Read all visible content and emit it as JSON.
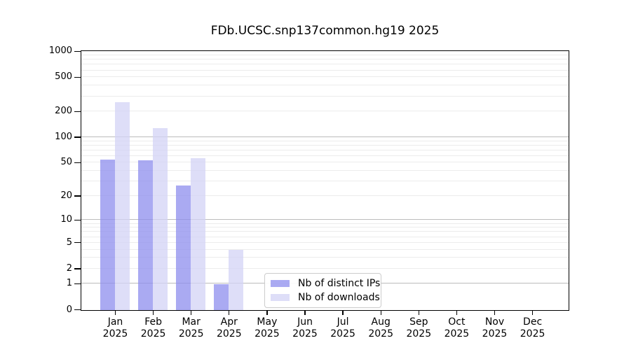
{
  "chart_data": {
    "type": "bar",
    "title": "FDb.UCSC.snp137common.hg19 2025",
    "categories": [
      "Jan",
      "Feb",
      "Mar",
      "Apr",
      "May",
      "Jun",
      "Jul",
      "Aug",
      "Sep",
      "Oct",
      "Nov",
      "Dec"
    ],
    "category_year": "2025",
    "series": [
      {
        "key": "distinct-ips",
        "name": "Nb of distinct IPs",
        "fill": "rgba(142,142,238,0.75)",
        "values": [
          55,
          54,
          27,
          1,
          0,
          0,
          0,
          0,
          0,
          0,
          0,
          0
        ]
      },
      {
        "key": "downloads",
        "name": "Nb of downloads",
        "fill": "rgba(211,211,246,0.75)",
        "values": [
          260,
          130,
          57,
          4,
          0,
          0,
          0,
          0,
          0,
          0,
          0,
          0
        ]
      }
    ],
    "y_axis": {
      "scale": "log10(value+1)",
      "log_decades": 3,
      "ticks": [
        0,
        1,
        2,
        5,
        10,
        20,
        50,
        100,
        200,
        500,
        1000
      ],
      "major_gridlines": [
        1,
        10,
        100
      ],
      "minor_gridlines": [
        2,
        3,
        4,
        5,
        6,
        7,
        8,
        9,
        20,
        30,
        40,
        50,
        60,
        70,
        80,
        90,
        200,
        300,
        400,
        500,
        600,
        700,
        800,
        900
      ],
      "range": [
        0,
        1000
      ]
    },
    "grid_colors": {
      "major": "#bcbcbc",
      "minor": "#ececec"
    },
    "legend": {
      "position": "bottom-center",
      "entries": [
        "Nb of distinct IPs",
        "Nb of downloads"
      ]
    },
    "axis_color": "#000000",
    "background": "#ffffff"
  }
}
